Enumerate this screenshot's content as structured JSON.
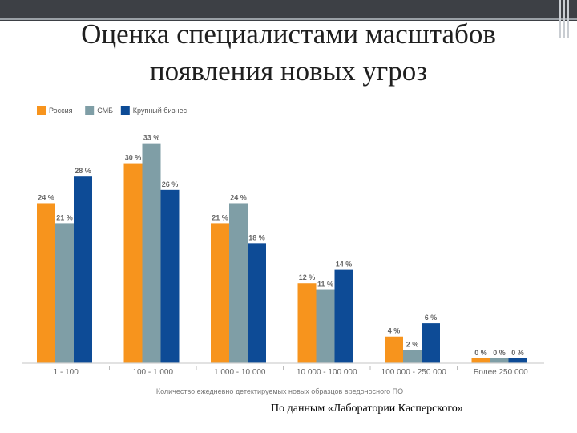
{
  "slide": {
    "title_line1": "Оценка специалистами масштабов",
    "title_line2": "появления новых угроз",
    "source": "По данным «Лаборатории Касперского»"
  },
  "chart_data": {
    "type": "bar",
    "categories": [
      "1 - 100",
      "100 - 1 000",
      "1 000 - 10 000",
      "10 000 - 100 000",
      "100 000 - 250 000",
      "Более 250 000"
    ],
    "series": [
      {
        "name": "Россия",
        "color": "#f7941d",
        "values": [
          24,
          30,
          21,
          12,
          4,
          0
        ]
      },
      {
        "name": "СМБ",
        "color": "#7f9ea6",
        "values": [
          21,
          33,
          24,
          11,
          2,
          0
        ]
      },
      {
        "name": "Крупный бизнес",
        "color": "#0d4b96",
        "values": [
          28,
          26,
          18,
          14,
          6,
          0
        ]
      }
    ],
    "value_suffix": " %",
    "xlabel": "Количество ежедневно детектируемых новых образцов вредоносного ПО",
    "ylabel": "",
    "ylim": [
      0,
      35
    ],
    "legend_position": "top-left",
    "grid": false
  }
}
